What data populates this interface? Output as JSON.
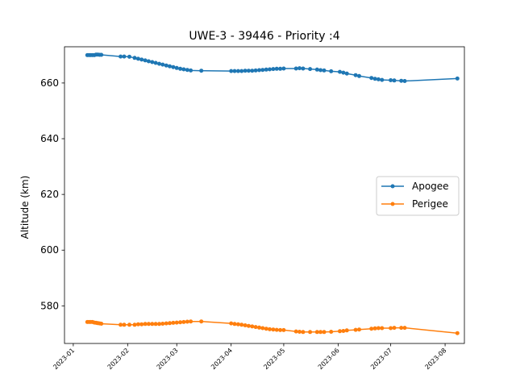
{
  "chart_data": {
    "type": "line",
    "title": "UWE-3 - 39446 - Priority :4",
    "xlabel": "",
    "ylabel": "Altitude (km)",
    "x_ticks": [
      "2023-01",
      "2023-02",
      "2023-03",
      "2023-04",
      "2023-05",
      "2023-06",
      "2023-07",
      "2023-08"
    ],
    "y_ticks": [
      580,
      600,
      620,
      640,
      660
    ],
    "xlim": [
      "2022-12-27",
      "2023-08-12"
    ],
    "ylim": [
      566.5,
      673.0
    ],
    "grid": false,
    "legend_position": "center-right",
    "series": [
      {
        "name": "Apogee",
        "color": "#1f77b4",
        "x": [
          "2023-01-09",
          "2023-01-10",
          "2023-01-11",
          "2023-01-12",
          "2023-01-13",
          "2023-01-14",
          "2023-01-15",
          "2023-01-16",
          "2023-01-17",
          "2023-01-28",
          "2023-01-30",
          "2023-02-02",
          "2023-02-05",
          "2023-02-07",
          "2023-02-09",
          "2023-02-11",
          "2023-02-13",
          "2023-02-15",
          "2023-02-17",
          "2023-02-19",
          "2023-02-21",
          "2023-02-23",
          "2023-02-25",
          "2023-02-27",
          "2023-03-01",
          "2023-03-03",
          "2023-03-05",
          "2023-03-07",
          "2023-03-09",
          "2023-03-15",
          "2023-04-01",
          "2023-04-03",
          "2023-04-05",
          "2023-04-07",
          "2023-04-09",
          "2023-04-11",
          "2023-04-13",
          "2023-04-15",
          "2023-04-17",
          "2023-04-19",
          "2023-04-21",
          "2023-04-23",
          "2023-04-25",
          "2023-04-27",
          "2023-04-29",
          "2023-05-01",
          "2023-05-08",
          "2023-05-10",
          "2023-05-12",
          "2023-05-16",
          "2023-05-20",
          "2023-05-22",
          "2023-05-24",
          "2023-05-28",
          "2023-06-02",
          "2023-06-04",
          "2023-06-06",
          "2023-06-11",
          "2023-06-13",
          "2023-06-20",
          "2023-06-22",
          "2023-06-24",
          "2023-06-26",
          "2023-07-01",
          "2023-07-03",
          "2023-07-07",
          "2023-07-09",
          "2023-08-08"
        ],
        "values": [
          670.0,
          670.0,
          670.0,
          670.0,
          670.0,
          670.2,
          670.2,
          670.1,
          670.1,
          669.5,
          669.5,
          669.4,
          669.0,
          668.7,
          668.4,
          668.1,
          667.8,
          667.5,
          667.2,
          666.9,
          666.6,
          666.3,
          666.0,
          665.7,
          665.4,
          665.1,
          664.9,
          664.7,
          664.5,
          664.4,
          664.3,
          664.3,
          664.3,
          664.3,
          664.4,
          664.4,
          664.4,
          664.5,
          664.6,
          664.7,
          664.8,
          664.9,
          665.0,
          665.1,
          665.1,
          665.2,
          665.2,
          665.3,
          665.2,
          665.0,
          664.8,
          664.6,
          664.5,
          664.2,
          664.0,
          663.7,
          663.4,
          662.8,
          662.5,
          661.8,
          661.5,
          661.3,
          661.1,
          661.0,
          660.9,
          660.8,
          660.7,
          661.6
        ]
      },
      {
        "name": "Perigee",
        "color": "#ff7f0e",
        "x": [
          "2023-01-09",
          "2023-01-10",
          "2023-01-11",
          "2023-01-12",
          "2023-01-13",
          "2023-01-14",
          "2023-01-15",
          "2023-01-16",
          "2023-01-17",
          "2023-01-28",
          "2023-01-30",
          "2023-02-02",
          "2023-02-05",
          "2023-02-07",
          "2023-02-09",
          "2023-02-11",
          "2023-02-13",
          "2023-02-15",
          "2023-02-17",
          "2023-02-19",
          "2023-02-21",
          "2023-02-23",
          "2023-02-25",
          "2023-02-27",
          "2023-03-01",
          "2023-03-03",
          "2023-03-05",
          "2023-03-07",
          "2023-03-09",
          "2023-03-15",
          "2023-04-01",
          "2023-04-03",
          "2023-04-05",
          "2023-04-07",
          "2023-04-09",
          "2023-04-11",
          "2023-04-13",
          "2023-04-15",
          "2023-04-17",
          "2023-04-19",
          "2023-04-21",
          "2023-04-23",
          "2023-04-25",
          "2023-04-27",
          "2023-04-29",
          "2023-05-01",
          "2023-05-08",
          "2023-05-10",
          "2023-05-12",
          "2023-05-16",
          "2023-05-20",
          "2023-05-22",
          "2023-05-24",
          "2023-05-28",
          "2023-06-02",
          "2023-06-04",
          "2023-06-06",
          "2023-06-11",
          "2023-06-13",
          "2023-06-20",
          "2023-06-22",
          "2023-06-24",
          "2023-06-26",
          "2023-07-01",
          "2023-07-03",
          "2023-07-07",
          "2023-07-09",
          "2023-08-08"
        ],
        "values": [
          574.2,
          574.2,
          574.2,
          574.2,
          574.0,
          573.9,
          573.8,
          573.7,
          573.6,
          573.2,
          573.2,
          573.2,
          573.2,
          573.4,
          573.4,
          573.5,
          573.5,
          573.5,
          573.5,
          573.5,
          573.6,
          573.7,
          573.8,
          573.9,
          574.0,
          574.1,
          574.2,
          574.3,
          574.4,
          574.4,
          573.7,
          573.5,
          573.4,
          573.2,
          573.0,
          572.8,
          572.6,
          572.4,
          572.2,
          572.0,
          571.8,
          571.6,
          571.5,
          571.4,
          571.3,
          571.3,
          570.8,
          570.7,
          570.6,
          570.6,
          570.6,
          570.6,
          570.6,
          570.7,
          570.9,
          571.0,
          571.2,
          571.4,
          571.5,
          571.8,
          571.9,
          572.0,
          572.0,
          572.0,
          572.1,
          572.1,
          572.1,
          570.2
        ]
      }
    ]
  }
}
